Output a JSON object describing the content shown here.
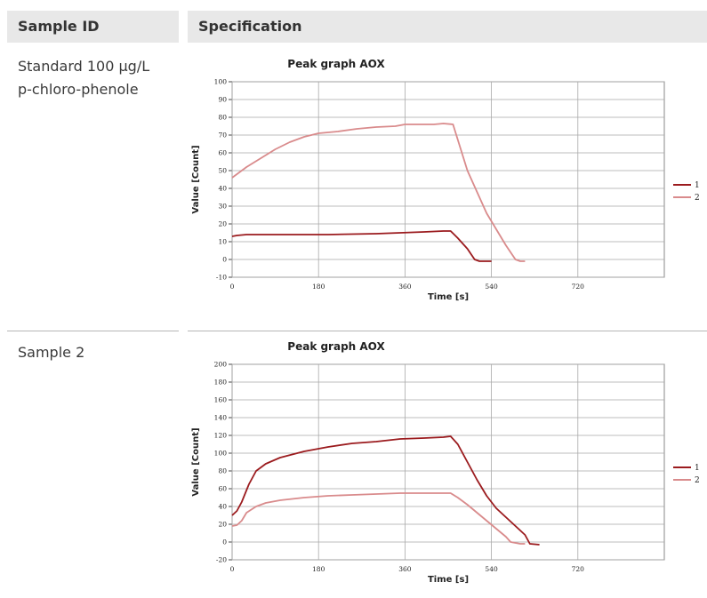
{
  "table": {
    "headers": [
      "Sample ID",
      "Specification"
    ],
    "rows": [
      {
        "sample_id_lines": [
          "Standard 100 µg/L",
          "p-chloro-phenole"
        ]
      },
      {
        "sample_id_lines": [
          "Sample 2"
        ]
      }
    ]
  },
  "chart_data": [
    {
      "type": "line",
      "title": "Peak graph AOX",
      "xlabel": "Time [s]",
      "ylabel": "Value [Count]",
      "xlim": [
        0,
        900
      ],
      "ylim": [
        -10,
        100
      ],
      "xticks": [
        0,
        180,
        360,
        540,
        720
      ],
      "yticks": [
        -10,
        0,
        10,
        20,
        30,
        40,
        50,
        60,
        70,
        80,
        90,
        100
      ],
      "legend": "right",
      "grid": true,
      "series": [
        {
          "name": "1",
          "color": "#9b1b1e",
          "x": [
            0,
            10,
            30,
            60,
            100,
            200,
            300,
            350,
            400,
            440,
            455,
            470,
            490,
            500,
            505,
            515,
            530,
            540
          ],
          "y": [
            13,
            13.5,
            14,
            14,
            14,
            14,
            14.5,
            15,
            15.5,
            16,
            16,
            12,
            6,
            2,
            0,
            -1,
            -1,
            -1
          ]
        },
        {
          "name": "2",
          "color": "#d98b8c",
          "x": [
            0,
            15,
            30,
            60,
            90,
            120,
            150,
            180,
            220,
            260,
            300,
            340,
            360,
            380,
            420,
            440,
            460,
            475,
            490,
            510,
            530,
            550,
            570,
            590,
            600,
            610
          ],
          "y": [
            46,
            49,
            52,
            57,
            62,
            66,
            69,
            71,
            72,
            73.5,
            74.5,
            75,
            76,
            76,
            76,
            76.5,
            76,
            63,
            50,
            38,
            26,
            17,
            8,
            0,
            -1,
            -1
          ]
        }
      ]
    },
    {
      "type": "line",
      "title": "Peak graph AOX",
      "xlabel": "Time [s]",
      "ylabel": "Value [Count]",
      "xlim": [
        0,
        900
      ],
      "ylim": [
        -20,
        200
      ],
      "xticks": [
        0,
        180,
        360,
        540,
        720
      ],
      "yticks": [
        -20,
        0,
        20,
        40,
        60,
        80,
        100,
        120,
        140,
        160,
        180,
        200
      ],
      "legend": "right",
      "grid": true,
      "series": [
        {
          "name": "1",
          "color": "#9b1b1e",
          "x": [
            0,
            10,
            20,
            35,
            50,
            70,
            100,
            150,
            200,
            250,
            300,
            350,
            400,
            440,
            455,
            470,
            490,
            510,
            530,
            550,
            570,
            590,
            610,
            620,
            640
          ],
          "y": [
            30,
            35,
            45,
            65,
            80,
            88,
            95,
            102,
            107,
            111,
            113,
            116,
            117,
            118,
            119,
            110,
            90,
            70,
            52,
            38,
            28,
            18,
            8,
            -2,
            -3
          ]
        },
        {
          "name": "2",
          "color": "#d98b8c",
          "x": [
            0,
            10,
            20,
            30,
            50,
            70,
            100,
            150,
            200,
            250,
            300,
            350,
            400,
            440,
            455,
            470,
            490,
            510,
            530,
            550,
            570,
            580,
            590,
            600,
            610
          ],
          "y": [
            18,
            19,
            24,
            33,
            40,
            44,
            47,
            50,
            52,
            53,
            54,
            55,
            55,
            55,
            55,
            50,
            42,
            33,
            24,
            15,
            6,
            0,
            -1,
            -2,
            -2
          ]
        }
      ]
    }
  ]
}
